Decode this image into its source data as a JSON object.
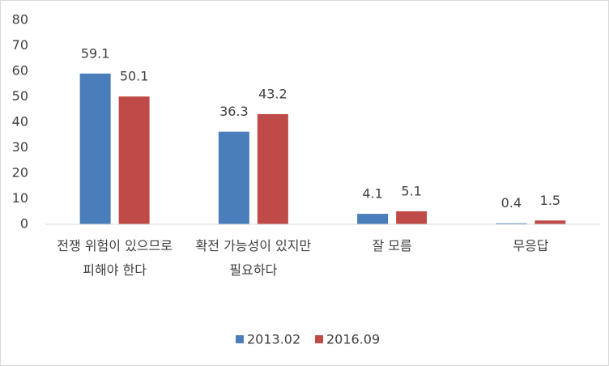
{
  "chart_data": {
    "type": "bar",
    "categories": [
      "전쟁 위험이 있으므로 피해야 한다",
      "확전 가능성이 있지만 필요하다",
      "잘 모름",
      "무응답"
    ],
    "series": [
      {
        "name": "2013.02",
        "color": "#4a7ebb",
        "values": [
          59.1,
          36.3,
          4.1,
          0.4
        ]
      },
      {
        "name": "2016.09",
        "color": "#be4b48",
        "values": [
          50.1,
          43.2,
          5.1,
          1.5
        ]
      }
    ],
    "ylim": [
      0,
      80
    ],
    "yticks": [
      0,
      10,
      20,
      30,
      40,
      50,
      60,
      70,
      80
    ],
    "grid": false,
    "legend": "bottom"
  }
}
